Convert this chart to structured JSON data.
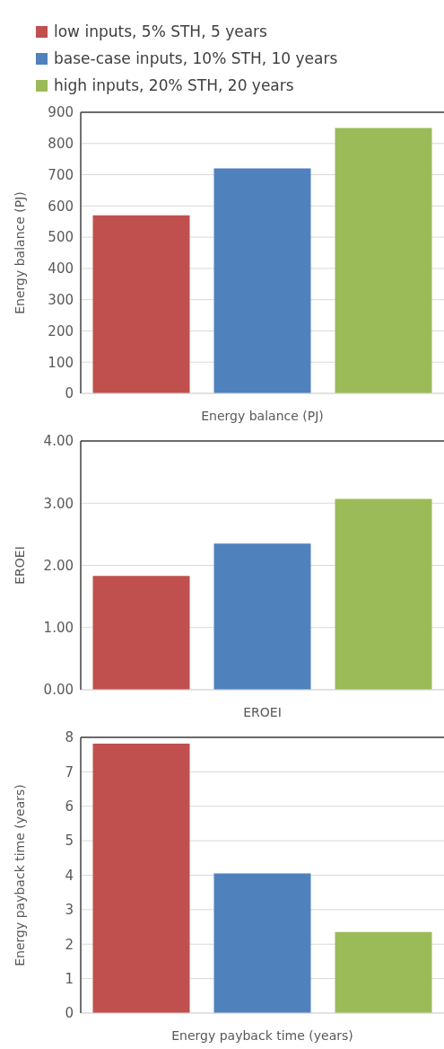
{
  "chart_data": [
    {
      "type": "bar",
      "categories": [
        null,
        null,
        null
      ],
      "xlabel": "Energy balance (PJ)",
      "ylabel": "Energy balance (PJ)",
      "ylim": [
        0,
        900
      ],
      "yticks": [
        0,
        100,
        200,
        300,
        400,
        500,
        600,
        700,
        800,
        900
      ],
      "grid": "y",
      "legend": "top left",
      "series": [
        {
          "name": "low inputs, 5% STH, 5 years",
          "color": "#c0504d",
          "values": [
            570,
            null,
            null
          ]
        },
        {
          "name": "base-case inputs, 10% STH, 10 years",
          "color": "#4f81bd",
          "values": [
            null,
            720,
            null
          ]
        },
        {
          "name": "high inputs, 20% STH, 20 years",
          "color": "#9bbb59",
          "values": [
            null,
            null,
            850
          ]
        }
      ]
    },
    {
      "type": "bar",
      "categories": [
        null,
        null,
        null
      ],
      "xlabel": "EROEI",
      "ylabel": "EROEI",
      "values": [
        1.83,
        2.35,
        3.07
      ],
      "colors": [
        "#c0504d",
        "#4f81bd",
        "#9bbb59"
      ],
      "ylim": [
        0,
        4
      ],
      "yticks": [
        {
          "value": 0,
          "label": "0.00"
        },
        {
          "value": 1,
          "label": "1.00"
        },
        {
          "value": 2,
          "label": "2.00"
        },
        {
          "value": 3,
          "label": "3.00"
        },
        {
          "value": 4,
          "label": "4.00"
        }
      ],
      "grid": "y"
    },
    {
      "type": "bar",
      "categories": [
        null,
        null,
        null
      ],
      "xlabel": "Energy payback time (years)",
      "ylabel": "Energy payback time (years)",
      "values": [
        7.82,
        4.05,
        2.35
      ],
      "colors": [
        "#c0504d",
        "#4f81bd",
        "#9bbb59"
      ],
      "ylim": [
        0,
        8
      ],
      "yticks": [
        0,
        1,
        2,
        3,
        4,
        5,
        6,
        7,
        8
      ],
      "grid": "y"
    }
  ]
}
